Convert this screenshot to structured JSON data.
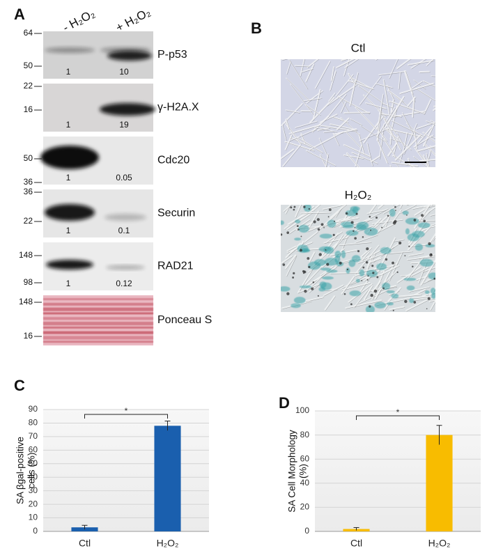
{
  "panel_a": {
    "label": "A",
    "columns": [
      "- H₂O₂",
      "+ H₂O₂"
    ],
    "blots": [
      {
        "name": "P-p53",
        "markers": [
          64,
          50
        ],
        "quantification": [
          1,
          10
        ]
      },
      {
        "name": "γ-H2A.X",
        "markers": [
          22,
          16
        ],
        "quantification": [
          1,
          19
        ]
      },
      {
        "name": "Cdc20",
        "markers": [
          50,
          36
        ],
        "quantification": [
          1,
          0.05
        ]
      },
      {
        "name": "Securin",
        "markers": [
          36,
          22
        ],
        "quantification": [
          1,
          0.1
        ]
      },
      {
        "name": "RAD21",
        "markers": [
          148,
          98
        ],
        "quantification": [
          1,
          0.12
        ]
      },
      {
        "name": "Ponceau S",
        "markers": [
          148,
          16
        ]
      }
    ]
  },
  "panel_b": {
    "label": "B",
    "images": [
      {
        "caption": "Ctl"
      },
      {
        "caption": "H₂O₂"
      }
    ]
  },
  "chart_data": [
    {
      "panel_label": "C",
      "type": "bar",
      "y_label": [
        "SA βgal-positive",
        "cells (%)"
      ],
      "categories": [
        "Ctl",
        "H₂O₂"
      ],
      "values": [
        3,
        78
      ],
      "errors": [
        1.5,
        3.5
      ],
      "color": "#1a5fae",
      "ylim": [
        0,
        90
      ],
      "yticks": [
        0,
        10,
        20,
        30,
        40,
        50,
        60,
        70,
        80,
        90
      ],
      "grid": true,
      "significance": "*"
    },
    {
      "panel_label": "D",
      "type": "bar",
      "y_label": [
        "SA Cell Morphology",
        "(%)"
      ],
      "categories": [
        "Ctl",
        "H₂O₂"
      ],
      "values": [
        2,
        80
      ],
      "errors": [
        1.2,
        8
      ],
      "color": "#f8bc00",
      "ylim": [
        0,
        100
      ],
      "yticks": [
        0,
        20,
        40,
        60,
        80,
        100
      ],
      "grid": true,
      "significance": "*"
    }
  ]
}
